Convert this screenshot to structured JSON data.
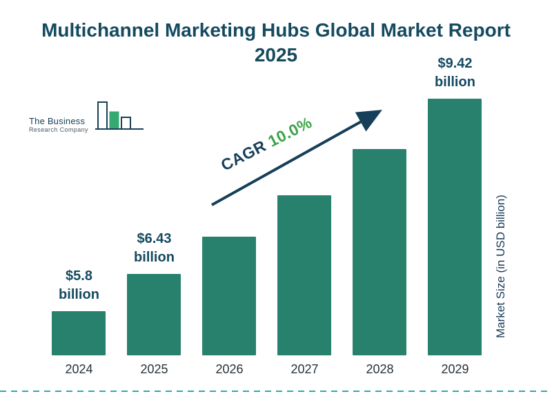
{
  "header": {
    "title": "Multichannel Marketing Hubs Global Market Report 2025"
  },
  "logo": {
    "line1": "The Business",
    "line2": "Research Company"
  },
  "annotations": {
    "cagr_label": "CAGR",
    "cagr_value": "10.0%",
    "y_axis_label": "Market Size (in USD billion)"
  },
  "chart_data": {
    "type": "bar",
    "title": "Multichannel Marketing Hubs Global Market Report 2025",
    "categories": [
      "2024",
      "2025",
      "2026",
      "2027",
      "2028",
      "2029"
    ],
    "values": [
      5.8,
      6.43,
      7.07,
      7.78,
      8.56,
      9.42
    ],
    "value_labels": [
      {
        "index": 0,
        "line1": "$5.8",
        "line2": "billion"
      },
      {
        "index": 1,
        "line1": "$6.43",
        "line2": "billion"
      },
      {
        "index": 5,
        "line1": "$9.42",
        "line2": "billion"
      }
    ],
    "cagr": "10.0%",
    "xlabel": "",
    "ylabel": "Market Size (in USD billion)",
    "legend": false,
    "grid": false,
    "bar_color": "#27816C"
  },
  "colors": {
    "title": "#154A5F",
    "bar": "#27816C",
    "green": "#3CA348",
    "navy": "#163F59",
    "dashed_line": "#2FA9A2",
    "year_label": "#263238"
  }
}
